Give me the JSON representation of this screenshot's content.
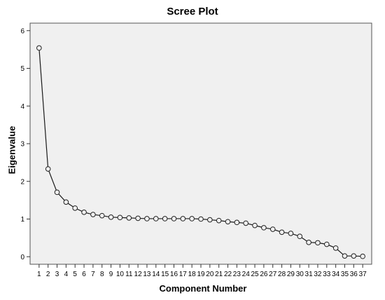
{
  "chart_data": {
    "type": "line",
    "title": "Scree Plot",
    "xlabel": "Component Number",
    "ylabel": "Eigenvalue",
    "x": [
      1,
      2,
      3,
      4,
      5,
      6,
      7,
      8,
      9,
      10,
      11,
      12,
      13,
      14,
      15,
      16,
      17,
      18,
      19,
      20,
      21,
      22,
      23,
      24,
      25,
      26,
      27,
      28,
      29,
      30,
      31,
      32,
      33,
      34,
      35,
      36,
      37
    ],
    "values": [
      5.54,
      2.33,
      1.71,
      1.45,
      1.29,
      1.18,
      1.12,
      1.09,
      1.05,
      1.04,
      1.03,
      1.02,
      1.01,
      1.01,
      1.01,
      1.01,
      1.01,
      1.01,
      1.0,
      0.98,
      0.96,
      0.93,
      0.91,
      0.89,
      0.83,
      0.77,
      0.73,
      0.65,
      0.62,
      0.54,
      0.38,
      0.37,
      0.33,
      0.23,
      0.02,
      0.02,
      0.01
    ],
    "ylim": [
      -0.2,
      6.2
    ],
    "yticks": [
      0,
      1,
      2,
      3,
      4,
      5,
      6
    ],
    "xlim": [
      0,
      38
    ],
    "grid": false,
    "marker": "open-circle",
    "colors": {
      "plot_background": "#f0f0f0",
      "axis_frame": "#555555",
      "line": "#1a1a1a",
      "marker_fill": "#f0f0f0",
      "marker_edge": "#222222"
    }
  }
}
